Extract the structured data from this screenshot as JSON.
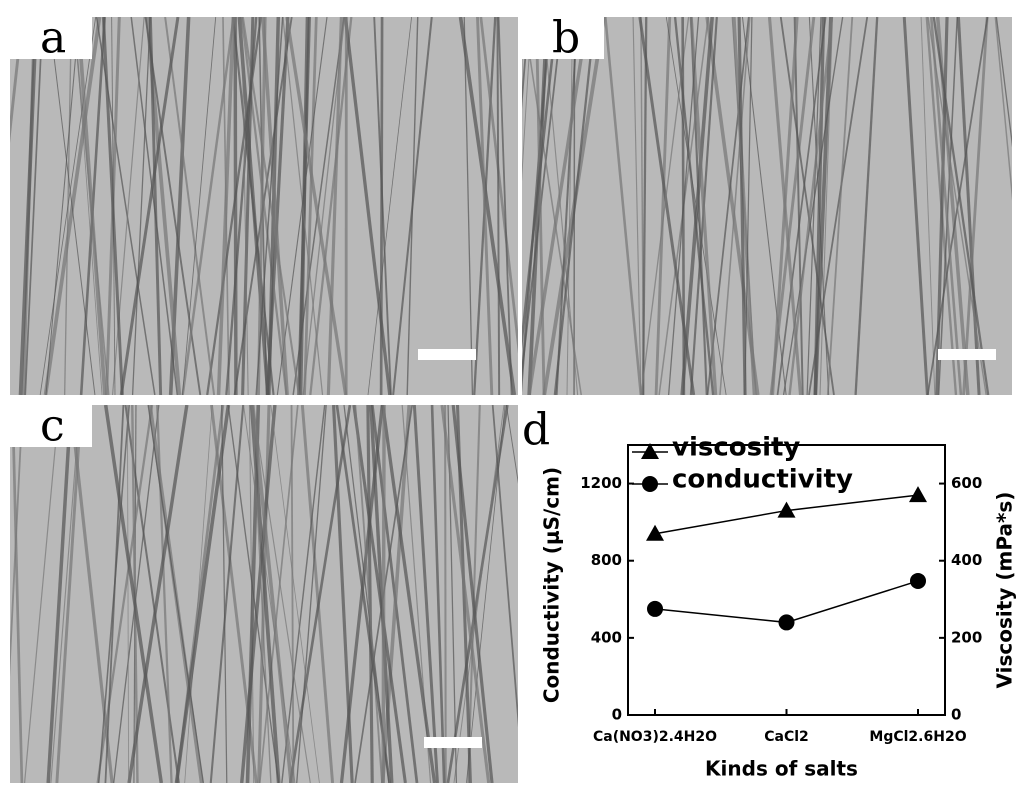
{
  "panel_labels": [
    "a",
    "b",
    "c",
    "d"
  ],
  "chart_data": {
    "type": "line",
    "categories": [
      "Ca(NO3)2.4H2O",
      "CaCl2",
      "MgCl2.6H2O"
    ],
    "series": [
      {
        "name": "viscosity",
        "color": "#000000",
        "marker": "triangle",
        "axis": "y2",
        "values": [
          470,
          530,
          570
        ]
      },
      {
        "name": "conductivity",
        "color": "#000000",
        "marker": "circle",
        "values": [
          550,
          480,
          695
        ]
      }
    ],
    "x_label": "Kinds of salts",
    "y_label": "Conductivity (μS/cm)",
    "y2_label": "Viscosity (mPa*s)",
    "ylim": [
      0,
      1400
    ],
    "yticks": [
      0,
      400,
      800,
      1200
    ],
    "y2lim": [
      0,
      700
    ],
    "y2ticks": [
      0,
      200,
      400,
      600
    ],
    "legend": "top-left"
  }
}
